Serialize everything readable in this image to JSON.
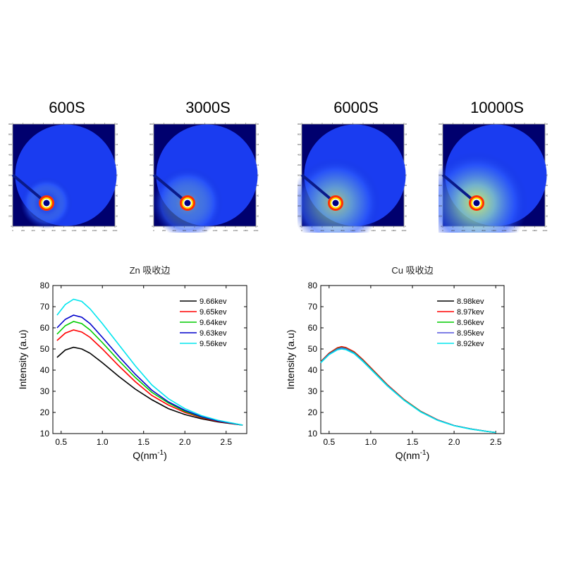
{
  "patterns": [
    {
      "label": "600S",
      "halo": 0.15
    },
    {
      "label": "3000S",
      "halo": 0.45
    },
    {
      "label": "6000S",
      "halo": 0.75
    },
    {
      "label": "10000S",
      "halo": 0.95
    }
  ],
  "pattern_axis_ticks": [
    "0",
    "200",
    "400",
    "600",
    "800",
    "1000",
    "1200",
    "1400",
    "1600",
    "1800",
    "2000"
  ],
  "chart_data": [
    {
      "type": "line",
      "title": "Zn 吸收边",
      "xlabel": "Q(nm",
      "xlabel_sup": "-1",
      "xlabel_close": ")",
      "ylabel": "Intensity (a.u)",
      "xlim": [
        0.4,
        2.75
      ],
      "ylim": [
        10,
        80
      ],
      "xticks": [
        0.5,
        1.0,
        1.5,
        2.0,
        2.5
      ],
      "xtick_labels": [
        "0.5",
        "1.0",
        "1.5",
        "2.0",
        "2.5"
      ],
      "yticks": [
        10,
        20,
        30,
        40,
        50,
        60,
        70,
        80
      ],
      "ytick_labels": [
        "10",
        "20",
        "30",
        "40",
        "50",
        "60",
        "70",
        "80"
      ],
      "legend_position": "top-right",
      "series": [
        {
          "name": "9.66kev",
          "color": "#000000",
          "x": [
            0.45,
            0.55,
            0.65,
            0.75,
            0.85,
            1.0,
            1.2,
            1.4,
            1.6,
            1.8,
            2.0,
            2.2,
            2.4,
            2.6,
            2.7
          ],
          "y": [
            46.0,
            49.5,
            50.8,
            50.0,
            48.0,
            43.5,
            37.0,
            31.0,
            26.0,
            21.8,
            19.0,
            17.0,
            15.5,
            14.5,
            14.0
          ]
        },
        {
          "name": "9.65kev",
          "color": "#ff0000",
          "x": [
            0.45,
            0.55,
            0.65,
            0.75,
            0.85,
            1.0,
            1.2,
            1.4,
            1.6,
            1.8,
            2.0,
            2.2,
            2.4,
            2.6,
            2.7
          ],
          "y": [
            54.0,
            57.5,
            59.0,
            58.0,
            55.5,
            50.0,
            42.0,
            34.5,
            28.0,
            23.5,
            20.0,
            17.5,
            15.8,
            14.6,
            14.0
          ]
        },
        {
          "name": "9.64kev",
          "color": "#00cc00",
          "x": [
            0.45,
            0.55,
            0.65,
            0.75,
            0.85,
            1.0,
            1.2,
            1.4,
            1.6,
            1.8,
            2.0,
            2.2,
            2.4,
            2.6,
            2.7
          ],
          "y": [
            57.0,
            61.0,
            63.0,
            62.0,
            59.0,
            53.0,
            44.5,
            36.5,
            29.5,
            24.5,
            20.5,
            17.8,
            16.0,
            14.7,
            14.0
          ]
        },
        {
          "name": "9.63kev",
          "color": "#0000cc",
          "x": [
            0.45,
            0.55,
            0.65,
            0.75,
            0.85,
            1.0,
            1.2,
            1.4,
            1.6,
            1.8,
            2.0,
            2.2,
            2.4,
            2.6,
            2.7
          ],
          "y": [
            60.0,
            64.0,
            66.0,
            65.0,
            62.0,
            55.5,
            46.5,
            38.0,
            30.5,
            25.0,
            21.0,
            18.0,
            16.0,
            14.7,
            14.0
          ]
        },
        {
          "name": "9.56kev",
          "color": "#00e5ee",
          "x": [
            0.45,
            0.55,
            0.65,
            0.75,
            0.85,
            1.0,
            1.2,
            1.4,
            1.6,
            1.8,
            2.0,
            2.2,
            2.4,
            2.6,
            2.7
          ],
          "y": [
            66.0,
            71.0,
            73.5,
            72.5,
            69.0,
            62.0,
            52.0,
            42.0,
            33.0,
            26.5,
            21.8,
            18.5,
            16.3,
            14.8,
            14.0
          ]
        }
      ]
    },
    {
      "type": "line",
      "title": "Cu 吸收边",
      "xlabel": "Q(nm",
      "xlabel_sup": "-1",
      "xlabel_close": ")",
      "ylabel": "Intensity (a.u)",
      "xlim": [
        0.4,
        2.6
      ],
      "ylim": [
        10,
        80
      ],
      "xticks": [
        0.5,
        1.0,
        1.5,
        2.0,
        2.5
      ],
      "xtick_labels": [
        "0.5",
        "1.0",
        "1.5",
        "2.0",
        "2.5"
      ],
      "yticks": [
        10,
        20,
        30,
        40,
        50,
        60,
        70,
        80
      ],
      "ytick_labels": [
        "10",
        "20",
        "30",
        "40",
        "50",
        "60",
        "70",
        "80"
      ],
      "legend_position": "top-right",
      "series": [
        {
          "name": "8.98kev",
          "color": "#000000",
          "x": [
            0.4,
            0.5,
            0.6,
            0.65,
            0.7,
            0.8,
            0.9,
            1.0,
            1.2,
            1.4,
            1.6,
            1.8,
            2.0,
            2.2,
            2.4,
            2.5
          ],
          "y": [
            44.0,
            48.0,
            50.5,
            51.0,
            50.5,
            48.5,
            45.0,
            41.0,
            33.0,
            26.0,
            20.5,
            16.5,
            13.8,
            12.2,
            11.0,
            10.5
          ]
        },
        {
          "name": "8.97kev",
          "color": "#ff0000",
          "x": [
            0.4,
            0.5,
            0.6,
            0.65,
            0.7,
            0.8,
            0.9,
            1.0,
            1.2,
            1.4,
            1.6,
            1.8,
            2.0,
            2.2,
            2.4,
            2.5
          ],
          "y": [
            44.0,
            48.0,
            50.6,
            51.1,
            50.7,
            48.7,
            45.2,
            41.2,
            33.1,
            26.1,
            20.5,
            16.5,
            13.8,
            12.2,
            11.0,
            10.5
          ]
        },
        {
          "name": "8.96kev",
          "color": "#00cc00",
          "x": [
            0.4,
            0.5,
            0.6,
            0.65,
            0.7,
            0.8,
            0.9,
            1.0,
            1.2,
            1.4,
            1.6,
            1.8,
            2.0,
            2.2,
            2.4,
            2.5
          ],
          "y": [
            43.8,
            47.7,
            50.2,
            50.7,
            50.3,
            48.3,
            44.8,
            40.8,
            32.8,
            25.9,
            20.4,
            16.4,
            13.8,
            12.2,
            11.0,
            10.5
          ]
        },
        {
          "name": "8.95kev",
          "color": "#5555dd",
          "x": [
            0.4,
            0.5,
            0.6,
            0.65,
            0.7,
            0.8,
            0.9,
            1.0,
            1.2,
            1.4,
            1.6,
            1.8,
            2.0,
            2.2,
            2.4,
            2.5
          ],
          "y": [
            43.7,
            47.6,
            50.0,
            50.5,
            50.1,
            48.1,
            44.6,
            40.6,
            32.7,
            25.8,
            20.3,
            16.4,
            13.8,
            12.2,
            11.0,
            10.5
          ]
        },
        {
          "name": "8.92kev",
          "color": "#00e5ee",
          "x": [
            0.4,
            0.5,
            0.6,
            0.65,
            0.7,
            0.8,
            0.9,
            1.0,
            1.2,
            1.4,
            1.6,
            1.8,
            2.0,
            2.2,
            2.4,
            2.5
          ],
          "y": [
            43.5,
            47.3,
            49.6,
            50.0,
            49.7,
            47.8,
            44.3,
            40.4,
            32.5,
            25.7,
            20.2,
            16.3,
            13.7,
            12.1,
            11.0,
            10.5
          ]
        }
      ]
    }
  ]
}
